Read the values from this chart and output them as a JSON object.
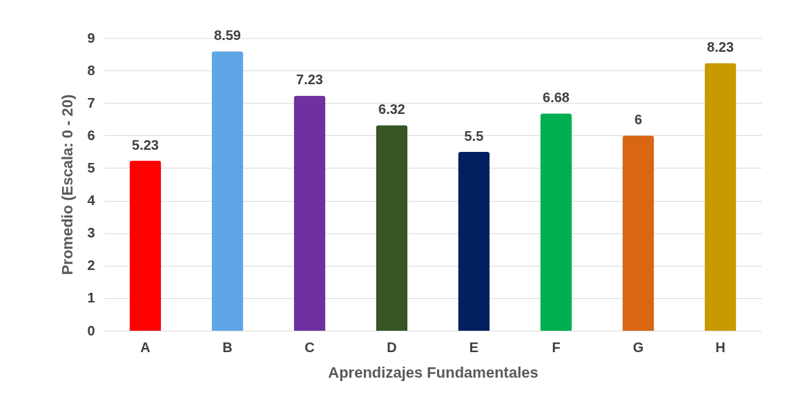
{
  "chart_data": {
    "type": "bar",
    "xlabel": "Aprendizajes Fundamentales",
    "ylabel": "Promedio (Escala: 0 - 20)",
    "categories": [
      "A",
      "B",
      "C",
      "D",
      "E",
      "F",
      "G",
      "H"
    ],
    "values": [
      5.23,
      8.59,
      7.23,
      6.32,
      5.5,
      6.68,
      6,
      8.23
    ],
    "colors": [
      "#ff0000",
      "#5ea6e6",
      "#7030a0",
      "#375623",
      "#002060",
      "#00b050",
      "#d86613",
      "#c99a00"
    ],
    "ylim": [
      0,
      9
    ],
    "yticks": [
      0,
      1,
      2,
      3,
      4,
      5,
      6,
      7,
      8,
      9
    ],
    "grid": "y",
    "data_labels": true
  }
}
